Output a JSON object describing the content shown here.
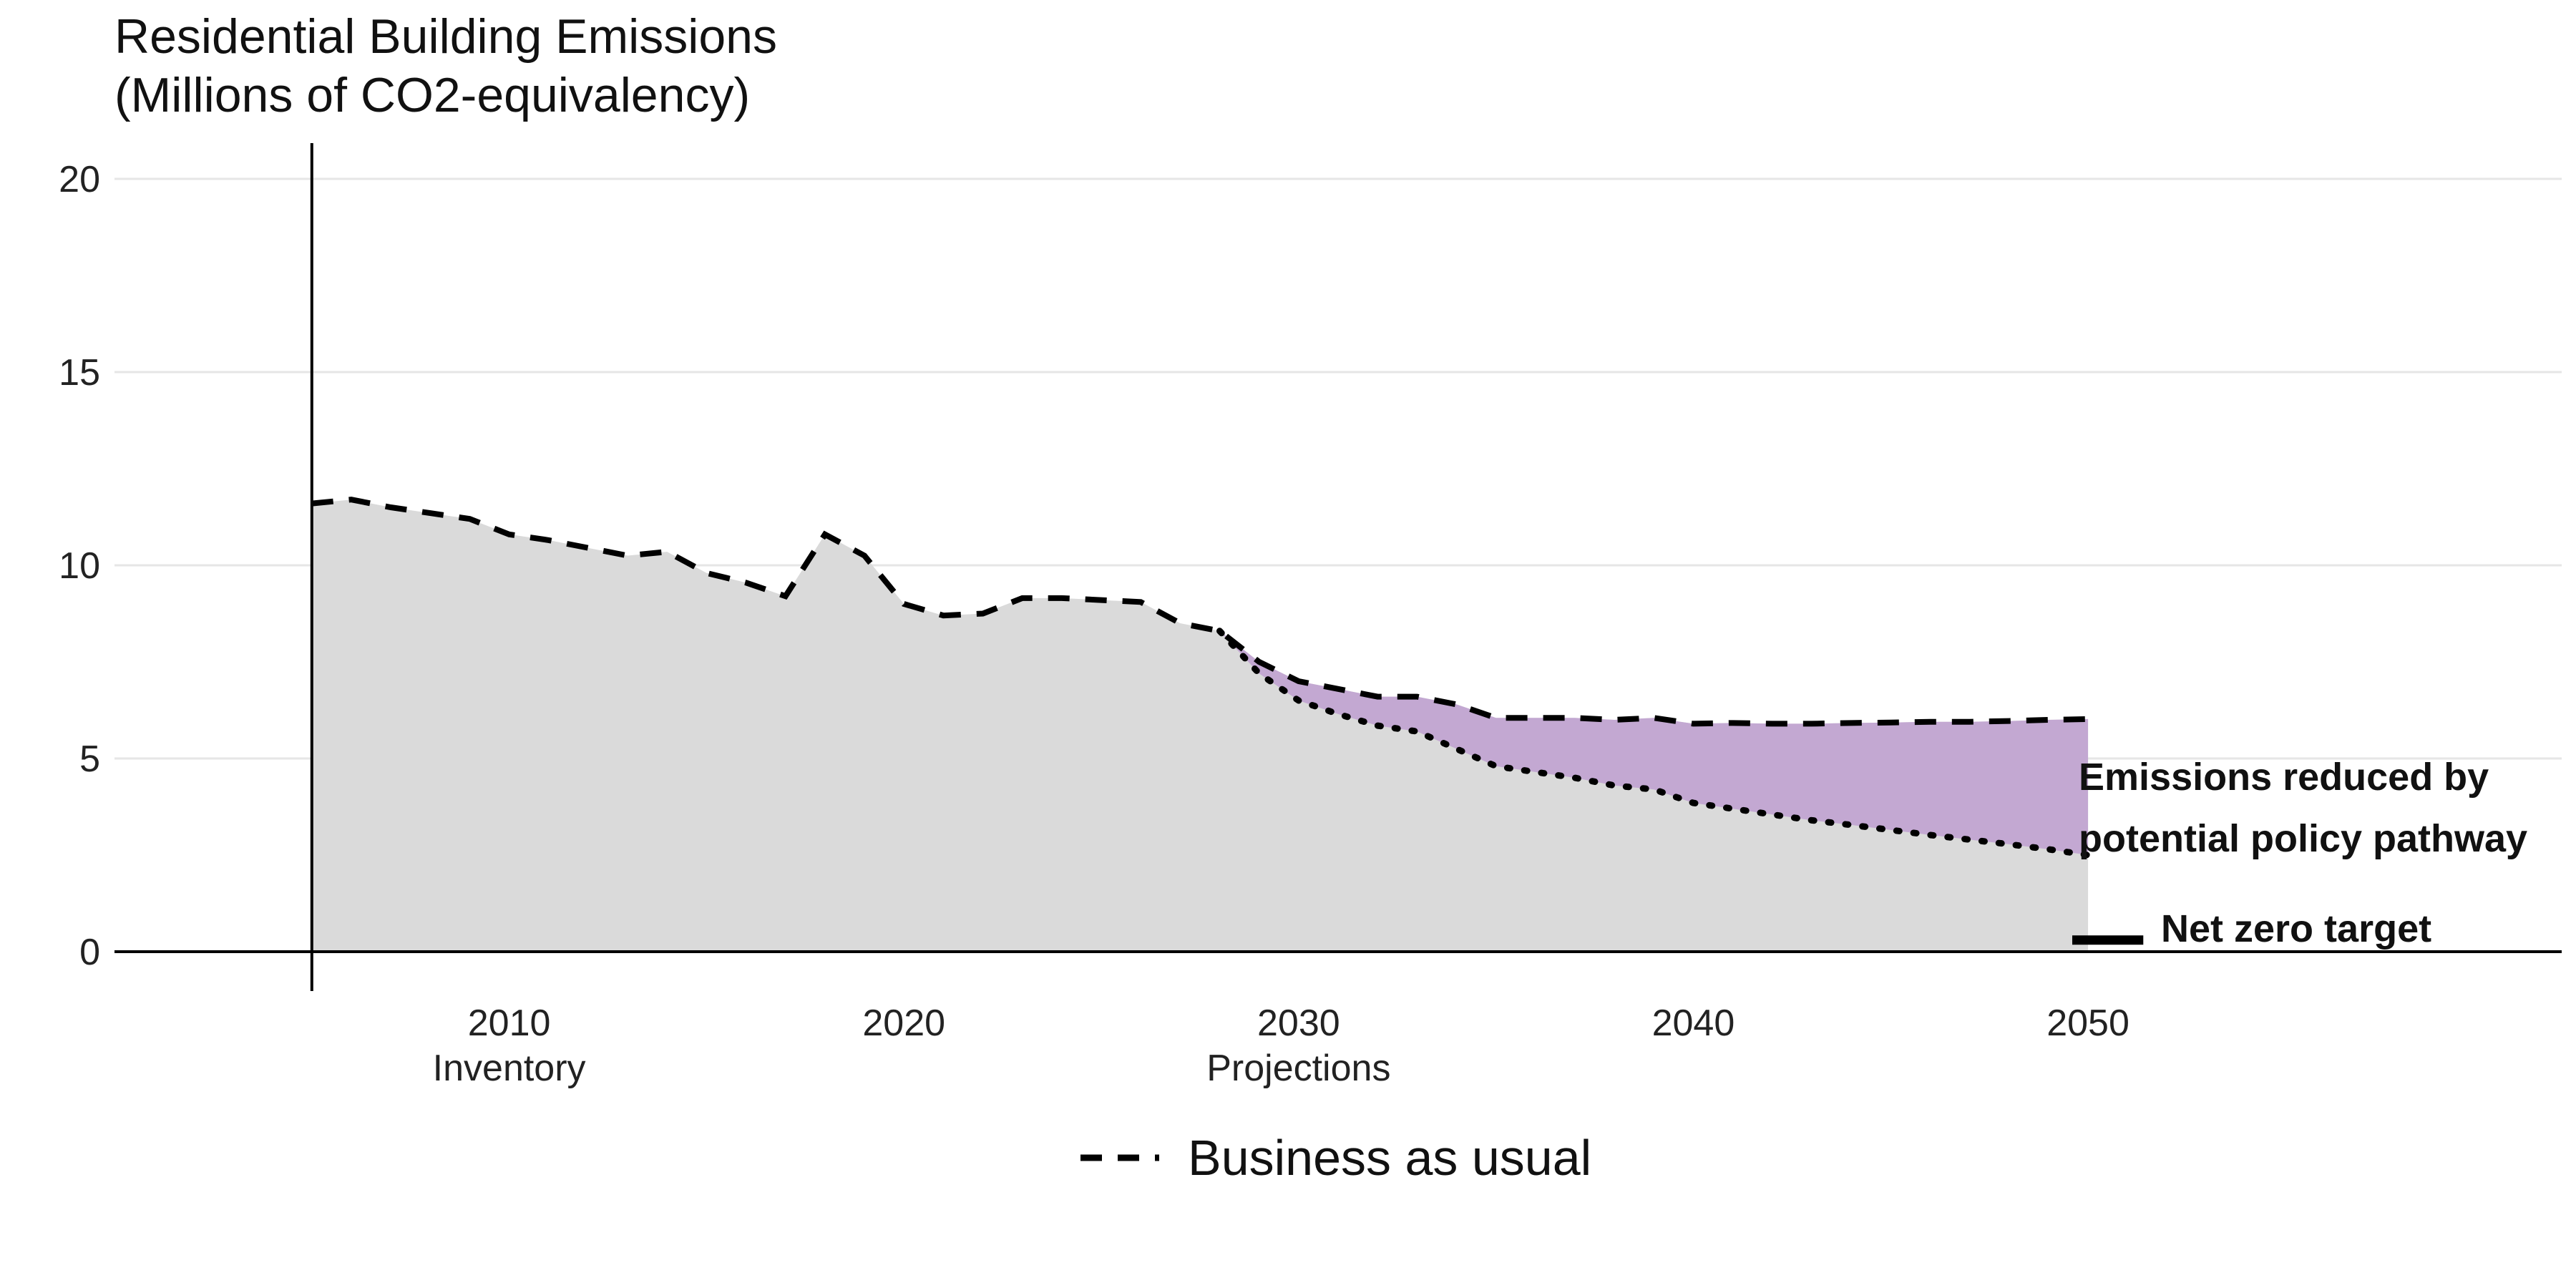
{
  "chart_data": {
    "type": "area",
    "title_lines": [
      "Residential Building Emissions",
      "(Millions of CO2-equivalency)"
    ],
    "xlabel": "",
    "ylabel": "",
    "xlim": [
      2000,
      2062
    ],
    "ylim": [
      0,
      21
    ],
    "y_ticks": [
      0,
      5,
      10,
      15,
      20
    ],
    "x_ticks": [
      {
        "value": 2010,
        "label": "2010",
        "sublabel": "Inventory"
      },
      {
        "value": 2020,
        "label": "2020",
        "sublabel": ""
      },
      {
        "value": 2030,
        "label": "2030",
        "sublabel": "Projections"
      },
      {
        "value": 2040,
        "label": "2040",
        "sublabel": ""
      },
      {
        "value": 2050,
        "label": "2050",
        "sublabel": ""
      }
    ],
    "grid": "horizontal",
    "colors": {
      "area_fill": "#dadada",
      "reduction_fill": "#c3a8d2",
      "grid": "#e6e6e6",
      "line": "#000000"
    },
    "series": [
      {
        "name": "Business as usual",
        "style": "dashed",
        "x": [
          2005,
          2006,
          2007,
          2008,
          2009,
          2010,
          2011,
          2012,
          2013,
          2014,
          2015,
          2016,
          2017,
          2018,
          2019,
          2020,
          2021,
          2022,
          2023,
          2024,
          2025,
          2026,
          2027,
          2028,
          2029,
          2030,
          2031,
          2032,
          2033,
          2034,
          2035,
          2036,
          2037,
          2038,
          2039,
          2040,
          2041,
          2042,
          2043,
          2044,
          2045,
          2046,
          2047,
          2048,
          2049,
          2050
        ],
        "values": [
          11.6,
          11.7,
          11.5,
          11.35,
          11.2,
          10.8,
          10.65,
          10.45,
          10.25,
          10.35,
          9.8,
          9.55,
          9.2,
          10.8,
          10.25,
          9.0,
          8.7,
          8.75,
          9.15,
          9.15,
          9.1,
          9.05,
          8.5,
          8.3,
          7.5,
          7.0,
          6.8,
          6.6,
          6.6,
          6.4,
          6.05,
          6.05,
          6.05,
          6.0,
          6.05,
          5.9,
          5.92,
          5.9,
          5.9,
          5.92,
          5.93,
          5.95,
          5.95,
          5.97,
          6.0,
          6.02
        ]
      },
      {
        "name": "Potential policy pathway",
        "style": "dotted",
        "x": [
          2028,
          2029,
          2030,
          2031,
          2032,
          2033,
          2034,
          2035,
          2036,
          2037,
          2038,
          2039,
          2040,
          2041,
          2042,
          2043,
          2044,
          2045,
          2046,
          2047,
          2048,
          2049,
          2050
        ],
        "values": [
          8.3,
          7.2,
          6.5,
          6.15,
          5.85,
          5.7,
          5.25,
          4.8,
          4.65,
          4.5,
          4.3,
          4.2,
          3.85,
          3.7,
          3.55,
          3.4,
          3.28,
          3.15,
          3.02,
          2.9,
          2.78,
          2.65,
          2.5
        ]
      }
    ],
    "net_zero_target": {
      "x_start": 2049.6,
      "x_end": 2051.4,
      "value": 0.3
    },
    "annotations": {
      "reduction_line1": "Emissions reduced by",
      "reduction_line2": "potential policy pathway",
      "net_zero": "Net zero target"
    },
    "legend": {
      "position": "bottom",
      "items": [
        {
          "label": "Business as usual",
          "style": "dashed"
        }
      ]
    }
  }
}
